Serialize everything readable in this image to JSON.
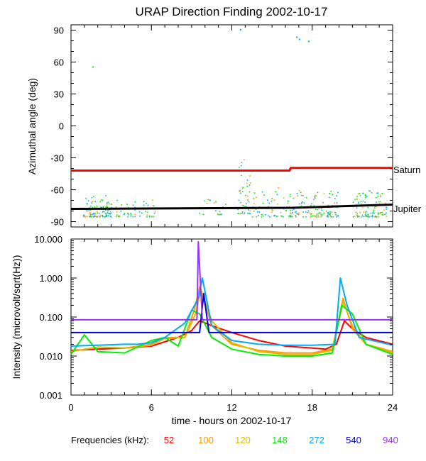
{
  "chart_data": [
    {
      "type": "scatter",
      "title": "URAP Direction Finding  2002-10-17",
      "ylabel": "Azimuthal angle (deg)",
      "xlabel": "",
      "xlim": [
        0,
        24
      ],
      "ylim": [
        -95,
        95
      ],
      "yticks": [
        "90",
        "60",
        "30",
        "0",
        "-30",
        "-60",
        "-90"
      ],
      "ytick_values": [
        90,
        60,
        30,
        0,
        -30,
        -60,
        -90
      ],
      "reference_lines": [
        {
          "name": "Saturn",
          "color": "#ff0000",
          "x": [
            0,
            16.3,
            16.4,
            24
          ],
          "y": [
            -42,
            -42,
            -39.5,
            -39.5
          ]
        },
        {
          "name": "Jupiter",
          "color": "#000000",
          "x": [
            0,
            16.5,
            24
          ],
          "y": [
            -78,
            -77,
            -74
          ]
        }
      ],
      "scatter_clusters": [
        {
          "x_range": [
            0.9,
            3.0
          ],
          "y_range": [
            -85,
            -65
          ],
          "count": 120
        },
        {
          "x_range": [
            3.3,
            6.3
          ],
          "y_range": [
            -85,
            -68
          ],
          "count": 50
        },
        {
          "x_range": [
            9.5,
            11.5
          ],
          "y_range": [
            -83,
            -65
          ],
          "count": 20
        },
        {
          "x_range": [
            12.4,
            13.4
          ],
          "y_range": [
            -82,
            -30
          ],
          "count": 50
        },
        {
          "x_range": [
            13.5,
            16.0
          ],
          "y_range": [
            -85,
            -55
          ],
          "count": 50
        },
        {
          "x_range": [
            16.0,
            20.0
          ],
          "y_range": [
            -85,
            -60
          ],
          "count": 140
        },
        {
          "x_range": [
            21.0,
            23.5
          ],
          "y_range": [
            -85,
            -60
          ],
          "count": 110
        }
      ],
      "outliers": [
        {
          "x": 1.6,
          "y": 56,
          "color": "#00ff00"
        },
        {
          "x": 12.6,
          "y": 91,
          "color": "#00aaff"
        },
        {
          "x": 16.8,
          "y": 84,
          "color": "#00aaff"
        },
        {
          "x": 17.0,
          "y": 82,
          "color": "#00aaff"
        },
        {
          "x": 17.7,
          "y": 80,
          "color": "#00aaff"
        }
      ],
      "reference_labels": [
        "Saturn",
        "Jupiter"
      ]
    },
    {
      "type": "line",
      "title": "",
      "ylabel": "Intensity (microvolt/sqrt(Hz))",
      "xlabel": "time - hours on 2002-10-17",
      "xlim": [
        0,
        24
      ],
      "ylim": [
        0.001,
        10
      ],
      "yscale": "log",
      "yticks": [
        "10.000",
        "1.000",
        "0.100",
        "0.010",
        "0.001"
      ],
      "ytick_values": [
        10,
        1,
        0.1,
        0.01,
        0.001
      ],
      "xticks": [
        "0",
        "6",
        "12",
        "18",
        "24"
      ],
      "xtick_values": [
        0,
        6,
        12,
        18,
        24
      ],
      "series": [
        {
          "name": "52",
          "color": "#ff0000",
          "x": [
            0,
            2,
            4,
            6,
            8,
            9,
            9.6,
            10.5,
            12,
            14,
            16,
            18,
            19,
            19.8,
            20.4,
            21,
            22,
            24
          ],
          "y": [
            0.014,
            0.015,
            0.016,
            0.018,
            0.03,
            0.045,
            0.08,
            0.06,
            0.04,
            0.025,
            0.018,
            0.016,
            0.015,
            0.02,
            0.08,
            0.05,
            0.03,
            0.02
          ]
        },
        {
          "name": "100",
          "color": "#ff9900",
          "x": [
            0,
            2,
            4,
            6,
            7,
            8.5,
            9.2,
            9.6,
            10.5,
            12,
            14,
            16,
            18,
            19.5,
            20.3,
            21,
            22,
            24
          ],
          "y": [
            0.013,
            0.017,
            0.016,
            0.02,
            0.03,
            0.03,
            0.15,
            0.6,
            0.06,
            0.02,
            0.014,
            0.012,
            0.012,
            0.015,
            0.3,
            0.05,
            0.02,
            0.013
          ]
        },
        {
          "name": "120",
          "color": "#ddbb00",
          "x": [
            0,
            2,
            4,
            6,
            7,
            8.5,
            9.3,
            9.7,
            10.5,
            12,
            14,
            16,
            18,
            19.5,
            20.3,
            21,
            22,
            24
          ],
          "y": [
            0.013,
            0.017,
            0.016,
            0.019,
            0.028,
            0.03,
            0.12,
            0.5,
            0.08,
            0.022,
            0.013,
            0.011,
            0.011,
            0.014,
            0.25,
            0.06,
            0.02,
            0.012
          ]
        },
        {
          "name": "148",
          "color": "#00ee00",
          "x": [
            0,
            1,
            2,
            4,
            6,
            7,
            8,
            9,
            9.6,
            10.5,
            12,
            14,
            16,
            18,
            19.5,
            20.2,
            21,
            22,
            24
          ],
          "y": [
            0.011,
            0.035,
            0.013,
            0.012,
            0.025,
            0.03,
            0.018,
            0.15,
            0.12,
            0.03,
            0.015,
            0.011,
            0.01,
            0.01,
            0.012,
            0.2,
            0.12,
            0.02,
            0.011
          ]
        },
        {
          "name": "272",
          "color": "#00aaff",
          "x": [
            0,
            2,
            4,
            5,
            6,
            7,
            8.5,
            9.5,
            9.8,
            10.5,
            12,
            14,
            16,
            18,
            19.7,
            20.1,
            20.6,
            21.5,
            24
          ],
          "y": [
            0.018,
            0.019,
            0.02,
            0.02,
            0.022,
            0.03,
            0.07,
            0.3,
            1.0,
            0.06,
            0.025,
            0.02,
            0.019,
            0.019,
            0.02,
            1.0,
            0.2,
            0.03,
            0.019
          ]
        },
        {
          "name": "540",
          "color": "#0000dd",
          "x": [
            0,
            9.6,
            9.9,
            10.3,
            24
          ],
          "y": [
            0.04,
            0.04,
            0.4,
            0.04,
            0.04
          ]
        },
        {
          "name": "940",
          "color": "#9933ff",
          "x": [
            0,
            9.4,
            9.5,
            9.8,
            24
          ],
          "y": [
            0.085,
            0.085,
            8.5,
            0.085,
            0.085
          ]
        }
      ]
    }
  ],
  "legend": {
    "label": "Frequencies (kHz):",
    "items": [
      {
        "label": "52",
        "color": "#ff0000"
      },
      {
        "label": "100",
        "color": "#ff9900"
      },
      {
        "label": "120",
        "color": "#ddbb00"
      },
      {
        "label": "148",
        "color": "#00ee00"
      },
      {
        "label": "272",
        "color": "#00aaff"
      },
      {
        "label": "540",
        "color": "#0000dd"
      },
      {
        "label": "940",
        "color": "#9933ff"
      }
    ]
  }
}
